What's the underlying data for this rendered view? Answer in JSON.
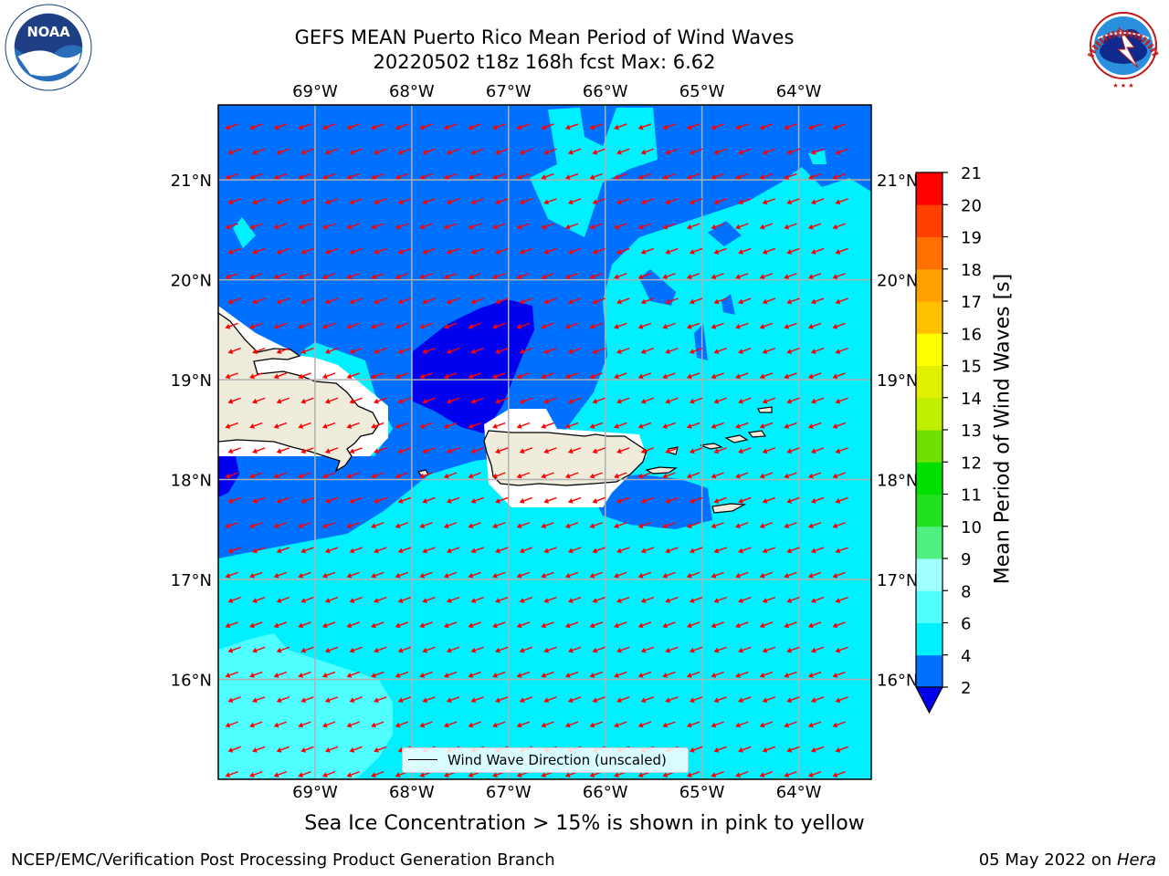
{
  "header": {
    "title_line1": "GEFS MEAN Puerto Rico Mean Period of Wind Waves",
    "title_line2": "20220502 t18z 168h fcst   Max: 6.62"
  },
  "logos": {
    "left": {
      "icon": "noaa-logo-icon",
      "text": "NOAA",
      "ring_text": "NATIONAL OCEANIC AND ATMOSPHERIC ADMINISTRATION · U.S. DEPARTMENT OF COMMERCE"
    },
    "right": {
      "icon": "nws-logo-icon",
      "ring_text": "NATIONAL WEATHER SERVICE"
    }
  },
  "map": {
    "lon_labels": [
      "69°W",
      "68°W",
      "67°W",
      "66°W",
      "65°W",
      "64°W"
    ],
    "lat_labels": [
      "21°N",
      "20°N",
      "19°N",
      "18°N",
      "17°N",
      "16°N"
    ],
    "lon_values": [
      -69,
      -68,
      -67,
      -66,
      -65,
      -64
    ],
    "lat_values": [
      21,
      20,
      19,
      18,
      17,
      16
    ],
    "lon_range": [
      -70.0,
      -63.25
    ],
    "lat_range": [
      15.0,
      21.75
    ],
    "land_color": "#efecdc",
    "arrow_color": "#ff0000",
    "grid_color": "#b0b0b0",
    "legend_label": "Wind Wave Direction (unscaled)",
    "arrow_direction": "toward west-southwest (from east-northeast)"
  },
  "colorbar": {
    "label": "Mean Period of Wind Waves [s]",
    "ticks": [
      "2",
      "4",
      "6",
      "8",
      "9",
      "10",
      "11",
      "12",
      "13",
      "14",
      "15",
      "16",
      "17",
      "18",
      "19",
      "20",
      "21"
    ],
    "tick_values": [
      2,
      4,
      6,
      8,
      9,
      10,
      11,
      12,
      13,
      14,
      15,
      16,
      17,
      18,
      19,
      20,
      21
    ],
    "under_color": "#0000ee",
    "band_colors": [
      "#0070ff",
      "#00f0ff",
      "#50ffff",
      "#a0ffff",
      "#50f080",
      "#20e020",
      "#00e000",
      "#70e000",
      "#c0f000",
      "#e0f000",
      "#ffff00",
      "#ffc000",
      "#ffa000",
      "#ff7000",
      "#ff4000",
      "#ff0000"
    ]
  },
  "chart_data": {
    "type": "heatmap",
    "variable": "Mean Period of Wind Waves [s]",
    "max": 6.62,
    "levels": [
      2,
      4,
      6,
      8,
      9,
      10,
      11,
      12,
      13,
      14,
      15,
      16,
      17,
      18,
      19,
      20,
      21
    ],
    "regions_present": [
      {
        "range": "<2",
        "color": "#0000ee"
      },
      {
        "range": "2-4",
        "color": "#0070ff"
      },
      {
        "range": "4-6",
        "color": "#00f0ff"
      },
      {
        "range": "6-8",
        "color": "#50ffff"
      }
    ]
  },
  "notes": {
    "sea_ice": "Sea Ice Concentration > 15% is shown in pink to yellow",
    "credit": "NCEP/EMC/Verification Post Processing Product Generation Branch",
    "date_prefix": "05 May 2022 on ",
    "date_machine": "Hera"
  }
}
